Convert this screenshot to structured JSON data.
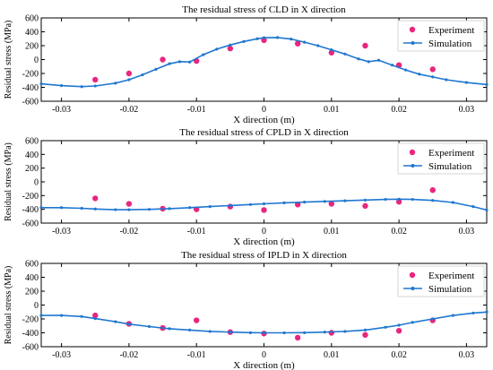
{
  "colors": {
    "simulation": "#1f77d0",
    "experiment": "#e8267f",
    "axis": "#000000"
  },
  "chart_data": [
    {
      "type": "scatter",
      "title": "The residual stress of CLD in X direction",
      "xlabel": "X direction (m)",
      "ylabel": "Residual stress (MPa)",
      "xlim": [
        -0.033,
        0.033
      ],
      "ylim": [
        -600,
        600
      ],
      "xticks": [
        -0.03,
        -0.02,
        -0.01,
        0,
        0.01,
        0.02,
        0.03
      ],
      "xtick_labels": [
        "-0.03",
        "-0.02",
        "-0.01",
        "0",
        "0.01",
        "0.02",
        "0.03"
      ],
      "yticks": [
        -600,
        -400,
        -200,
        0,
        200,
        400,
        600
      ],
      "ytick_labels": [
        "-600",
        "-400",
        "-200",
        "0",
        "200",
        "400",
        "600"
      ],
      "legend_position": "top-right",
      "series": [
        {
          "name": "Experiment",
          "kind": "scatter",
          "x": [
            -0.025,
            -0.02,
            -0.015,
            -0.01,
            -0.005,
            0,
            0.005,
            0.01,
            0.015,
            0.02,
            0.025
          ],
          "y": [
            -290,
            -200,
            0,
            -20,
            160,
            280,
            230,
            100,
            200,
            -80,
            -140
          ]
        },
        {
          "name": "Simulation",
          "kind": "line",
          "x": [
            -0.033,
            -0.03,
            -0.027,
            -0.025,
            -0.022,
            -0.02,
            -0.018,
            -0.016,
            -0.014,
            -0.0125,
            -0.011,
            -0.009,
            -0.007,
            -0.005,
            -0.003,
            -0.001,
            0,
            0.002,
            0.004,
            0.006,
            0.008,
            0.01,
            0.012,
            0.014,
            0.0155,
            0.017,
            0.019,
            0.021,
            0.023,
            0.025,
            0.027,
            0.03,
            0.033
          ],
          "y": [
            -350,
            -375,
            -390,
            -380,
            -340,
            -290,
            -220,
            -140,
            -60,
            -30,
            -35,
            70,
            150,
            210,
            260,
            300,
            315,
            318,
            295,
            250,
            200,
            140,
            80,
            10,
            -30,
            -10,
            -80,
            -150,
            -210,
            -250,
            -290,
            -330,
            -360
          ]
        }
      ]
    },
    {
      "type": "scatter",
      "title": "The residual stress of CPLD in X direction",
      "xlabel": "X direction (m)",
      "ylabel": "Residual stress (MPa)",
      "xlim": [
        -0.033,
        0.033
      ],
      "ylim": [
        -600,
        600
      ],
      "xticks": [
        -0.03,
        -0.02,
        -0.01,
        0,
        0.01,
        0.02,
        0.03
      ],
      "xtick_labels": [
        "-0.03",
        "-0.02",
        "-0.01",
        "0",
        "0.01",
        "0.02",
        "0.03"
      ],
      "yticks": [
        -600,
        -400,
        -200,
        0,
        200,
        400,
        600
      ],
      "ytick_labels": [
        "-600",
        "-400",
        "-200",
        "0",
        "200",
        "400",
        "600"
      ],
      "legend_position": "top-right",
      "series": [
        {
          "name": "Experiment",
          "kind": "scatter",
          "x": [
            -0.025,
            -0.02,
            -0.015,
            -0.01,
            -0.005,
            0,
            0.005,
            0.01,
            0.015,
            0.02,
            0.025
          ],
          "y": [
            -240,
            -320,
            -390,
            -400,
            -360,
            -410,
            -330,
            -320,
            -350,
            -290,
            -120
          ]
        },
        {
          "name": "Simulation",
          "kind": "line",
          "x": [
            -0.033,
            -0.03,
            -0.027,
            -0.025,
            -0.022,
            -0.02,
            -0.017,
            -0.014,
            -0.011,
            -0.008,
            -0.005,
            -0.002,
            0,
            0.003,
            0.006,
            0.009,
            0.012,
            0.015,
            0.018,
            0.02,
            0.022,
            0.025,
            0.028,
            0.031,
            0.033
          ],
          "y": [
            -375,
            -375,
            -385,
            -395,
            -405,
            -405,
            -400,
            -390,
            -375,
            -360,
            -345,
            -330,
            -320,
            -305,
            -295,
            -285,
            -275,
            -265,
            -255,
            -252,
            -255,
            -270,
            -300,
            -360,
            -410
          ]
        }
      ]
    },
    {
      "type": "scatter",
      "title": "The residual stress of IPLD in X direction",
      "xlabel": "X direction (m)",
      "ylabel": "Residual stress (MPa)",
      "xlim": [
        -0.033,
        0.033
      ],
      "ylim": [
        -600,
        600
      ],
      "xticks": [
        -0.03,
        -0.02,
        -0.01,
        0,
        0.01,
        0.02,
        0.03
      ],
      "xtick_labels": [
        "-0.03",
        "-0.02",
        "-0.01",
        "0",
        "0.01",
        "0.02",
        "0.03"
      ],
      "yticks": [
        -600,
        -400,
        -200,
        0,
        200,
        400,
        600
      ],
      "ytick_labels": [
        "-600",
        "-400",
        "-200",
        "0",
        "200",
        "400",
        "600"
      ],
      "legend_position": "top-right",
      "series": [
        {
          "name": "Experiment",
          "kind": "scatter",
          "x": [
            -0.025,
            -0.02,
            -0.015,
            -0.01,
            -0.005,
            0,
            0.005,
            0.01,
            0.015,
            0.02,
            0.025
          ],
          "y": [
            -150,
            -270,
            -330,
            -220,
            -390,
            -410,
            -470,
            -400,
            -430,
            -370,
            -220
          ]
        },
        {
          "name": "Simulation",
          "kind": "line",
          "x": [
            -0.033,
            -0.03,
            -0.027,
            -0.025,
            -0.022,
            -0.02,
            -0.017,
            -0.014,
            -0.011,
            -0.008,
            -0.005,
            -0.002,
            0,
            0.003,
            0.006,
            0.009,
            0.012,
            0.015,
            0.018,
            0.02,
            0.022,
            0.025,
            0.028,
            0.031,
            0.033
          ],
          "y": [
            -150,
            -150,
            -165,
            -195,
            -240,
            -275,
            -310,
            -340,
            -360,
            -380,
            -390,
            -398,
            -400,
            -400,
            -398,
            -390,
            -380,
            -360,
            -320,
            -290,
            -250,
            -200,
            -150,
            -115,
            -100
          ]
        }
      ]
    }
  ]
}
